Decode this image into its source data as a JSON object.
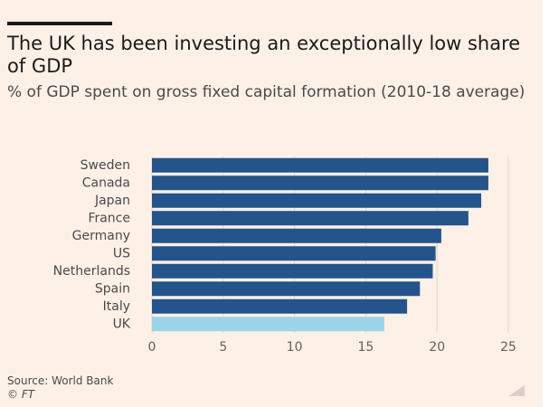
{
  "title": "The UK has been investing an exceptionally low share of GDP",
  "subtitle": "% of GDP spent on gross fixed capital formation (2010-18 average)",
  "source": "Source: World Bank",
  "copyright": "© FT",
  "colors": {
    "bar": "#24548a",
    "highlight": "#9dd3e6",
    "grid": "#e2d6cd",
    "tick": "#66605b",
    "label": "#4a4a4a"
  },
  "chart_data": {
    "type": "bar",
    "orientation": "horizontal",
    "categories": [
      "Sweden",
      "Canada",
      "Japan",
      "France",
      "Germany",
      "US",
      "Netherlands",
      "Spain",
      "Italy",
      "UK"
    ],
    "values": [
      23.6,
      23.6,
      23.1,
      22.2,
      20.3,
      19.9,
      19.7,
      18.8,
      17.9,
      16.3
    ],
    "highlight": "UK",
    "xlim": [
      0,
      25
    ],
    "xticks": [
      0,
      5,
      10,
      15,
      20,
      25
    ],
    "grid": true,
    "title": "The UK has been investing an exceptionally low share of GDP",
    "subtitle": "% of GDP spent on gross fixed capital formation (2010-18 average)",
    "xlabel": "",
    "ylabel": ""
  }
}
